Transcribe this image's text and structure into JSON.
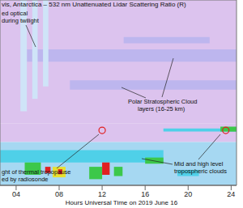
{
  "chart_data": {
    "type": "heatmap",
    "title": "vis, Antarctica – 532 nm Unattenuated Lidar Scattering Ratio (R)",
    "xlabel": "Hours Universal Time on 2019 June 16",
    "xlim": [
      2.5,
      24.5
    ],
    "xticks": [
      {
        "value": 4,
        "label": "04"
      },
      {
        "value": 8,
        "label": "08"
      },
      12,
      16,
      20,
      24
    ],
    "ylim": [
      0,
      30
    ],
    "tick_labels": "x",
    "cells": [
      {
        "x": [
          2.5,
          24.5
        ],
        "y": [
          10,
          30
        ],
        "value": 1.0
      },
      {
        "x": [
          2.5,
          24.5
        ],
        "y": [
          7,
          10
        ],
        "value": 1.1
      },
      {
        "x": [
          2.5,
          24.5
        ],
        "y": [
          0,
          7
        ],
        "value": 2.0
      },
      {
        "x": [
          5,
          24.5
        ],
        "y": [
          20,
          22
        ],
        "value": 1.3
      },
      {
        "x": [
          9,
          24.5
        ],
        "y": [
          15.5,
          17
        ],
        "value": 1.3
      },
      {
        "x": [
          14,
          22
        ],
        "y": [
          23,
          24
        ],
        "value": 1.2
      },
      {
        "x": [
          4.4,
          5
        ],
        "y": [
          12,
          30
        ],
        "value": 1.6
      },
      {
        "x": [
          5.5,
          6
        ],
        "y": [
          14,
          30
        ],
        "value": 1.6
      },
      {
        "x": [
          6.5,
          7
        ],
        "y": [
          16,
          30
        ],
        "value": 1.6
      },
      {
        "x": [
          2.5,
          17.7
        ],
        "y": [
          3.7,
          5.7
        ],
        "value": 3
      },
      {
        "x": [
          4.8,
          6.3
        ],
        "y": [
          1.7,
          3.7
        ],
        "value": 6
      },
      {
        "x": [
          6.7,
          7.2
        ],
        "y": [
          2,
          3
        ],
        "value": 12
      },
      {
        "x": [
          7.4,
          8.6
        ],
        "y": [
          1.3,
          3
        ],
        "value": 8
      },
      {
        "x": [
          7.9,
          8.3
        ],
        "y": [
          1.8,
          2.6
        ],
        "value": 12
      },
      {
        "x": [
          10.8,
          12
        ],
        "y": [
          1,
          3
        ],
        "value": 6
      },
      {
        "x": [
          12,
          12.7
        ],
        "y": [
          1.7,
          3.7
        ],
        "value": 12
      },
      {
        "x": [
          13.1,
          13.9
        ],
        "y": [
          1.5,
          3
        ],
        "value": 6
      },
      {
        "x": [
          16,
          17.7
        ],
        "y": [
          3.5,
          4.5
        ],
        "value": 5
      },
      {
        "x": [
          17.7,
          24.5
        ],
        "y": [
          8.7,
          9.2
        ],
        "value": 3
      },
      {
        "x": [
          23,
          24.5
        ],
        "y": [
          8.7,
          9.5
        ],
        "value": 6
      },
      {
        "x": [
          19,
          21
        ],
        "y": [
          1.5,
          2.5
        ],
        "value": 3
      }
    ],
    "series": [
      {
        "type": "scatter",
        "marker": "circle",
        "color": "#e02020",
        "x": [
          12,
          23.5
        ],
        "values": [
          8.9,
          8.9
        ]
      }
    ],
    "annotations": [
      {
        "lines": [
          "ed optical",
          "during twilight"
        ]
      },
      {
        "lines": [
          "Polar Stratospheric Cloud",
          "layers (16-25 km)"
        ]
      },
      {
        "lines": [
          "Mid and high level",
          "tropospheric clouds"
        ]
      },
      {
        "lines": [
          "ght of thermal tropopause",
          "ed by radiosonde"
        ]
      }
    ]
  }
}
